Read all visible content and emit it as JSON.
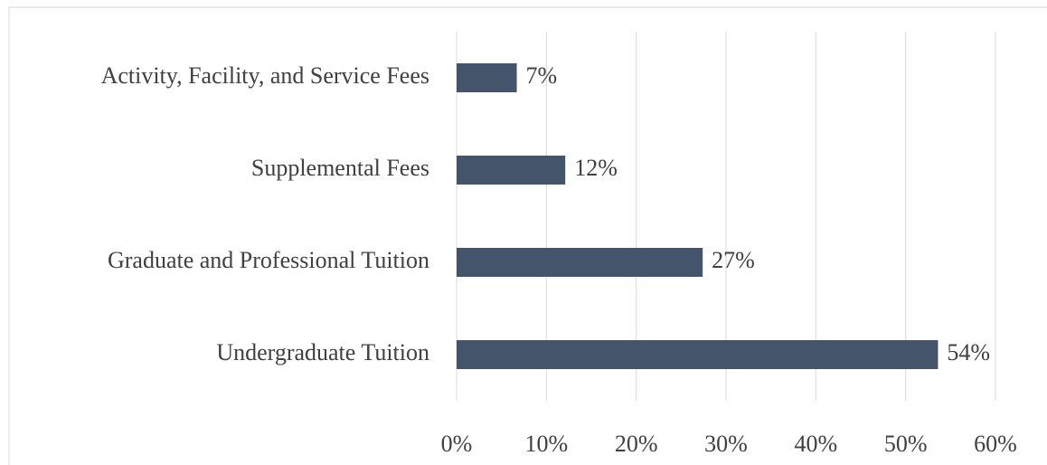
{
  "chart_data": {
    "type": "bar",
    "orientation": "horizontal",
    "categories": [
      "Activity, Facility, and Service Fees",
      "Supplemental Fees",
      "Graduate and Professional Tuition",
      "Undergraduate Tuition"
    ],
    "values": [
      6.7,
      12.1,
      27.4,
      53.6
    ],
    "value_labels": [
      "7%",
      "12%",
      "27%",
      "54%"
    ],
    "color": "#44546a",
    "xlim": [
      0,
      60
    ],
    "xticks": [
      {
        "value": 0,
        "label": "0%"
      },
      {
        "value": 10,
        "label": "10%"
      },
      {
        "value": 20,
        "label": "20%"
      },
      {
        "value": 30,
        "label": "30%"
      },
      {
        "value": 40,
        "label": "40%"
      },
      {
        "value": 50,
        "label": "50%"
      },
      {
        "value": 60,
        "label": "60%"
      }
    ],
    "grid": true
  }
}
